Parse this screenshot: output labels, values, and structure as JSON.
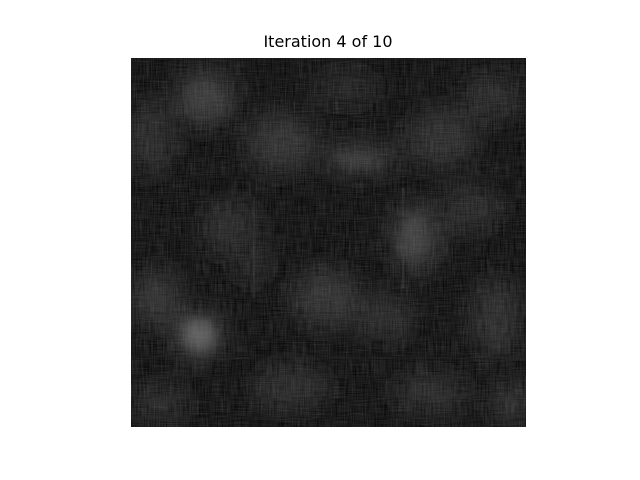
{
  "figure": {
    "title": "Iteration 4 of 10",
    "colors": {
      "background": "#ffffff",
      "image_base": "#030303",
      "blob_highlight": "#7a7a7a"
    },
    "image": {
      "description_icon": "grayscale-noise-image"
    }
  }
}
